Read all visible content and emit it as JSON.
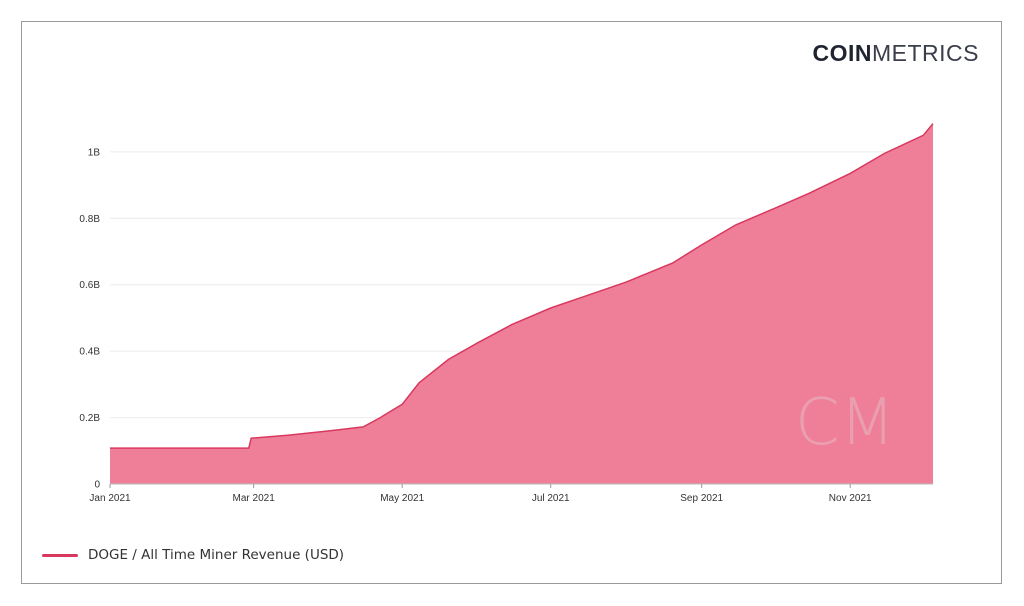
{
  "brand": {
    "bold": "COIN",
    "light": "METRICS"
  },
  "colors": {
    "series": "#d9385e",
    "fill": "#ef7f98",
    "watermark": "#e9aab8",
    "grid": "#ececec"
  },
  "watermark": "CM",
  "legend": {
    "label": "DOGE / All Time Miner Revenue (USD)"
  },
  "chart_data": {
    "type": "area",
    "title": "",
    "xlabel": "",
    "ylabel": "",
    "y_ticks": [
      {
        "value": 0,
        "label": "0"
      },
      {
        "value": 0.2,
        "label": "0.2B"
      },
      {
        "value": 0.4,
        "label": "0.4B"
      },
      {
        "value": 0.6,
        "label": "0.6B"
      },
      {
        "value": 0.8,
        "label": "0.8B"
      },
      {
        "value": 1.0,
        "label": "1B"
      }
    ],
    "x_ticks": [
      {
        "date": "2021-01-01",
        "label": "Jan 2021"
      },
      {
        "date": "2021-03-01",
        "label": "Mar 2021"
      },
      {
        "date": "2021-05-01",
        "label": "May 2021"
      },
      {
        "date": "2021-07-01",
        "label": "Jul 2021"
      },
      {
        "date": "2021-09-01",
        "label": "Sep 2021"
      },
      {
        "date": "2021-11-01",
        "label": "Nov 2021"
      }
    ],
    "xlim": [
      "2021-01-01",
      "2021-12-05"
    ],
    "ylim": [
      0,
      1.12
    ],
    "y_unit": "billion USD",
    "grid": true,
    "legend_position": "bottom-left",
    "series": [
      {
        "name": "DOGE / All Time Miner Revenue (USD)",
        "points": [
          [
            "2021-01-01",
            0.108
          ],
          [
            "2021-02-27",
            0.108
          ],
          [
            "2021-02-28",
            0.138
          ],
          [
            "2021-03-15",
            0.147
          ],
          [
            "2021-04-01",
            0.16
          ],
          [
            "2021-04-15",
            0.172
          ],
          [
            "2021-04-22",
            0.2
          ],
          [
            "2021-05-01",
            0.24
          ],
          [
            "2021-05-08",
            0.305
          ],
          [
            "2021-05-20",
            0.375
          ],
          [
            "2021-06-01",
            0.425
          ],
          [
            "2021-06-15",
            0.48
          ],
          [
            "2021-07-01",
            0.53
          ],
          [
            "2021-07-15",
            0.565
          ],
          [
            "2021-08-01",
            0.608
          ],
          [
            "2021-08-20",
            0.665
          ],
          [
            "2021-09-01",
            0.72
          ],
          [
            "2021-09-15",
            0.78
          ],
          [
            "2021-10-01",
            0.83
          ],
          [
            "2021-10-15",
            0.875
          ],
          [
            "2021-11-01",
            0.935
          ],
          [
            "2021-11-15",
            0.995
          ],
          [
            "2021-12-01",
            1.05
          ],
          [
            "2021-12-05",
            1.085
          ]
        ]
      }
    ]
  }
}
